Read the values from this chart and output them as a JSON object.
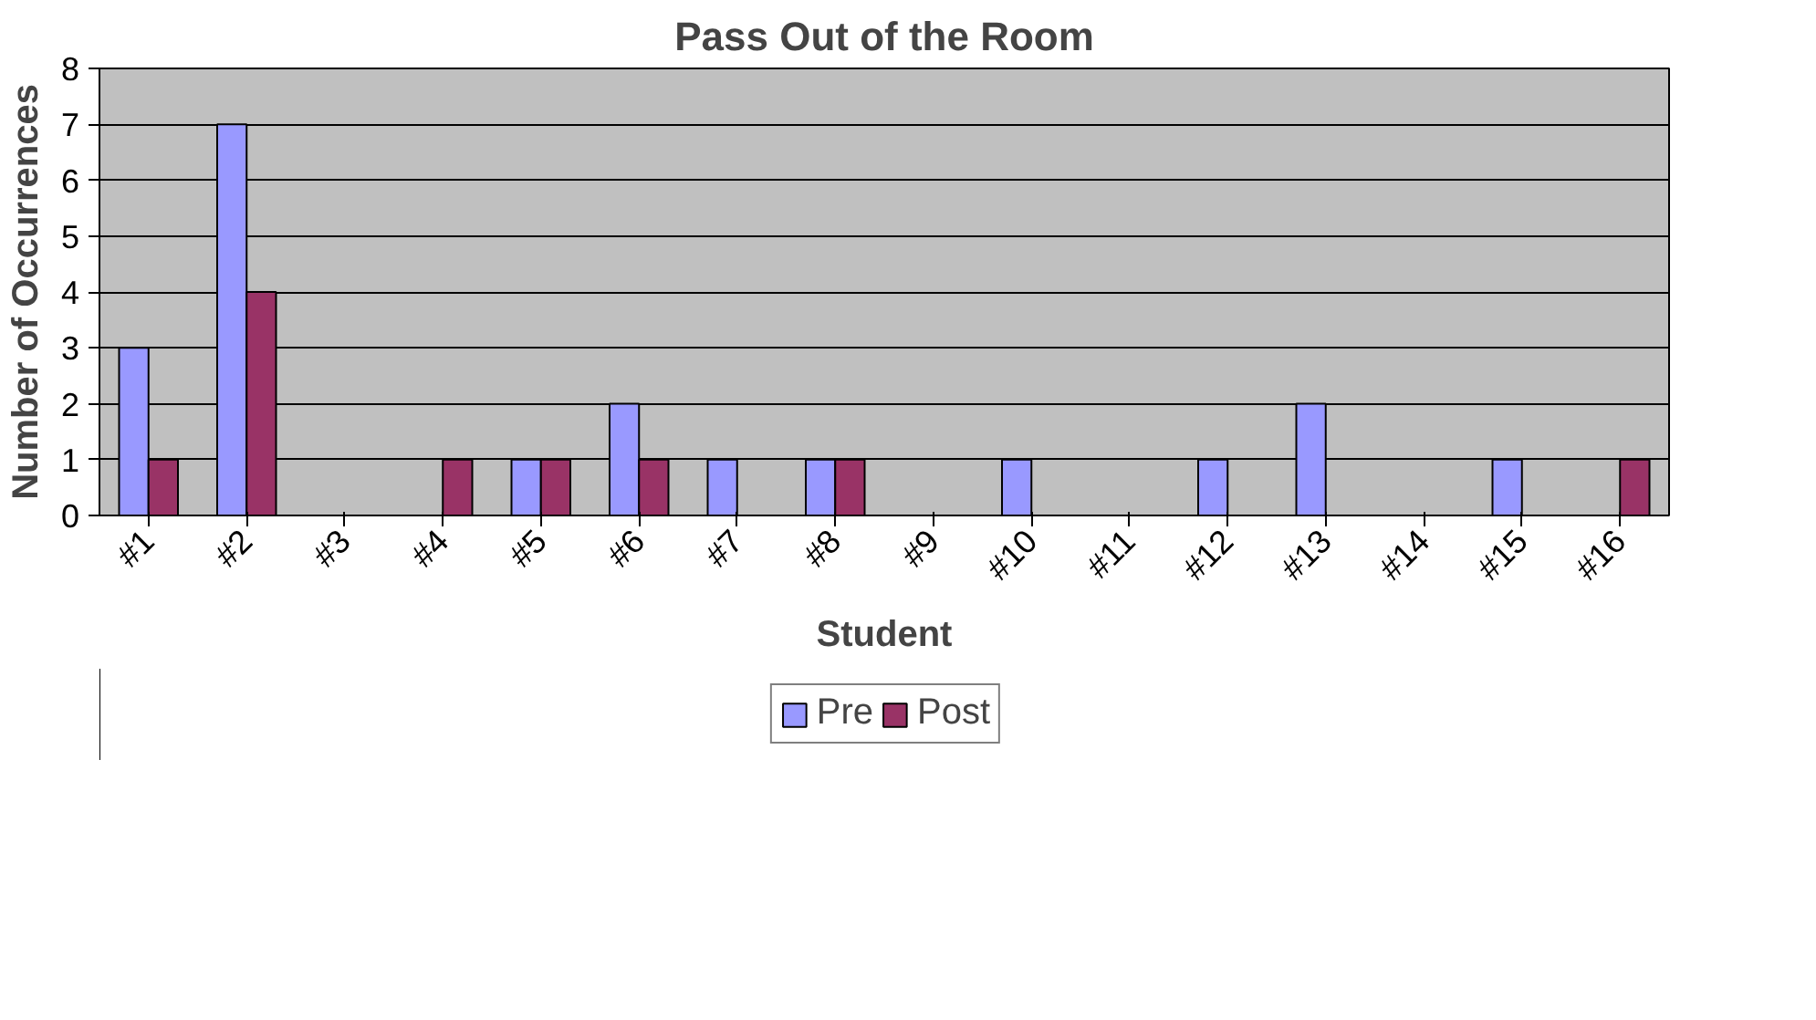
{
  "chart_data": {
    "type": "bar",
    "title": "Pass Out of the Room",
    "xlabel": "Student",
    "ylabel": "Number of Occurrences",
    "categories": [
      "#1",
      "#2",
      "#3",
      "#4",
      "#5",
      "#6",
      "#7",
      "#8",
      "#9",
      "#10",
      "#11",
      "#12",
      "#13",
      "#14",
      "#15",
      "#16"
    ],
    "series": [
      {
        "name": "Pre",
        "color": "#9999ff",
        "values": [
          3,
          7,
          0,
          0,
          1,
          2,
          1,
          1,
          0,
          1,
          0,
          1,
          2,
          0,
          1,
          0
        ]
      },
      {
        "name": "Post",
        "color": "#993366",
        "values": [
          1,
          4,
          0,
          1,
          1,
          1,
          0,
          1,
          0,
          0,
          0,
          0,
          0,
          0,
          0,
          1
        ]
      }
    ],
    "ylim": [
      0,
      8
    ],
    "yticks": [
      0,
      1,
      2,
      3,
      4,
      5,
      6,
      7,
      8
    ],
    "grid": "y",
    "legend": "bottom"
  }
}
